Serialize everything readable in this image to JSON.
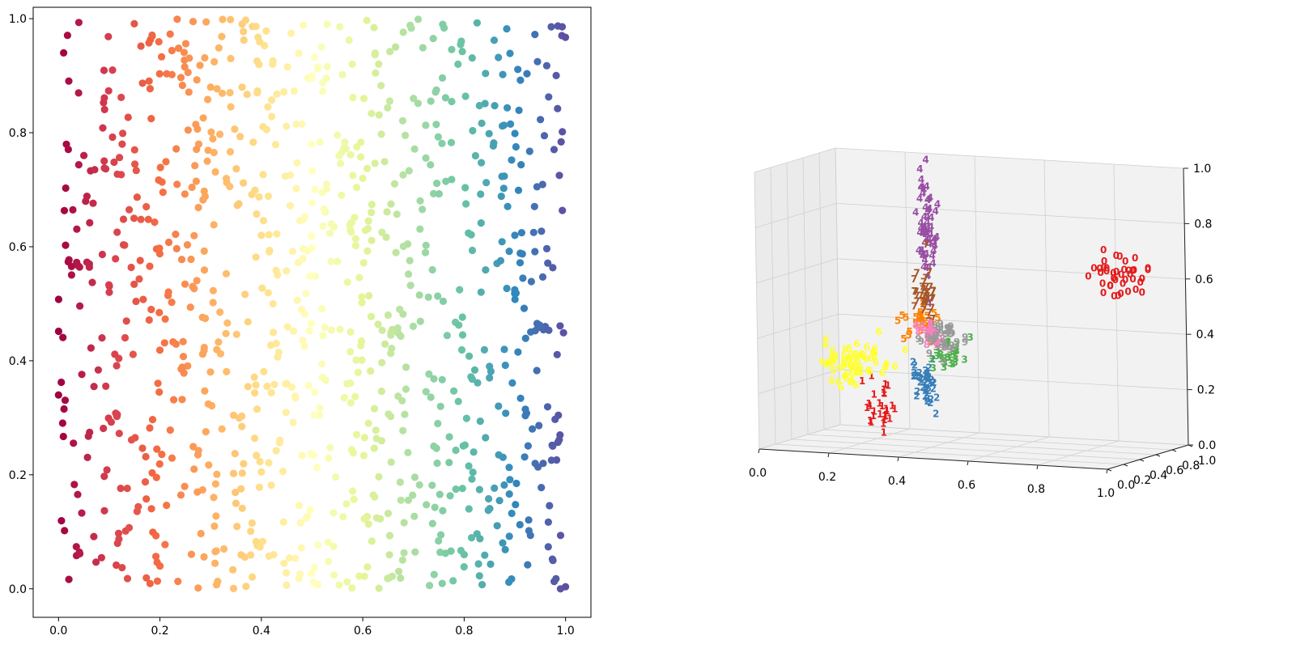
{
  "chart_data": [
    {
      "type": "scatter",
      "title": "",
      "xlabel": "",
      "ylabel": "",
      "xlim": [
        -0.05,
        1.05
      ],
      "ylim": [
        -0.05,
        1.02
      ],
      "x_ticks": [
        "0.0",
        "0.2",
        "0.4",
        "0.6",
        "0.8",
        "1.0"
      ],
      "y_ticks": [
        "0.0",
        "0.2",
        "0.4",
        "0.6",
        "0.8",
        "1.0"
      ],
      "colormap": "Spectral",
      "color_by": "x",
      "point_count": 1000,
      "distribution": "approximately uniform over [0,1] x [0,1], color mapped from x value",
      "sample_points": [
        [
          0.01,
          0.94
        ],
        [
          0.05,
          0.76
        ],
        [
          0.1,
          0.52
        ],
        [
          0.2,
          0.04
        ],
        [
          0.3,
          0.88
        ],
        [
          0.4,
          0.62
        ],
        [
          0.5,
          0.9
        ],
        [
          0.53,
          0.99
        ],
        [
          0.6,
          0.72
        ],
        [
          0.7,
          0.86
        ],
        [
          0.8,
          0.06
        ],
        [
          0.9,
          0.62
        ],
        [
          0.99,
          0.0
        ],
        [
          0.0,
          0.34
        ],
        [
          0.15,
          0.77
        ],
        [
          0.35,
          0.15
        ],
        [
          0.45,
          0.36
        ],
        [
          0.65,
          0.48
        ],
        [
          0.85,
          0.37
        ],
        [
          0.96,
          0.46
        ]
      ],
      "grid": false,
      "legend": "none"
    },
    {
      "type": "scatter3d",
      "title": "",
      "marker": "digit text labels",
      "x_ticks": [
        "0.0",
        "0.2",
        "0.4",
        "0.6",
        "0.8",
        "1.0"
      ],
      "y_ticks": [
        "0.0",
        "0.2",
        "0.4",
        "0.6",
        "0.8",
        "1.0"
      ],
      "z_ticks": [
        "0.0",
        "0.2",
        "0.4",
        "0.6",
        "0.8",
        "1.0"
      ],
      "xlim": [
        0,
        1
      ],
      "ylim": [
        0,
        1
      ],
      "zlim": [
        0,
        1
      ],
      "grid": true,
      "legend": "none",
      "clusters": [
        {
          "digit": "0",
          "color": "#e41a1c",
          "center": [
            0.98,
            0.3,
            0.65
          ]
        },
        {
          "digit": "1",
          "color": "#e41a1c",
          "center": [
            0.33,
            0.1,
            0.15
          ]
        },
        {
          "digit": "2",
          "color": "#377eb8",
          "center": [
            0.42,
            0.25,
            0.25
          ]
        },
        {
          "digit": "3",
          "color": "#4daf4a",
          "center": [
            0.48,
            0.3,
            0.35
          ]
        },
        {
          "digit": "4",
          "color": "#984ea3",
          "center": [
            0.41,
            0.35,
            0.8
          ]
        },
        {
          "digit": "5",
          "color": "#ff7f00",
          "center": [
            0.4,
            0.3,
            0.45
          ]
        },
        {
          "digit": "6",
          "color": "#ffff33",
          "center": [
            0.22,
            0.25,
            0.3
          ]
        },
        {
          "digit": "7",
          "color": "#a65628",
          "center": [
            0.41,
            0.3,
            0.55
          ]
        },
        {
          "digit": "8",
          "color": "#f781bf",
          "center": [
            0.43,
            0.3,
            0.4
          ]
        },
        {
          "digit": "9",
          "color": "#999999",
          "center": [
            0.47,
            0.3,
            0.4
          ]
        }
      ]
    }
  ]
}
